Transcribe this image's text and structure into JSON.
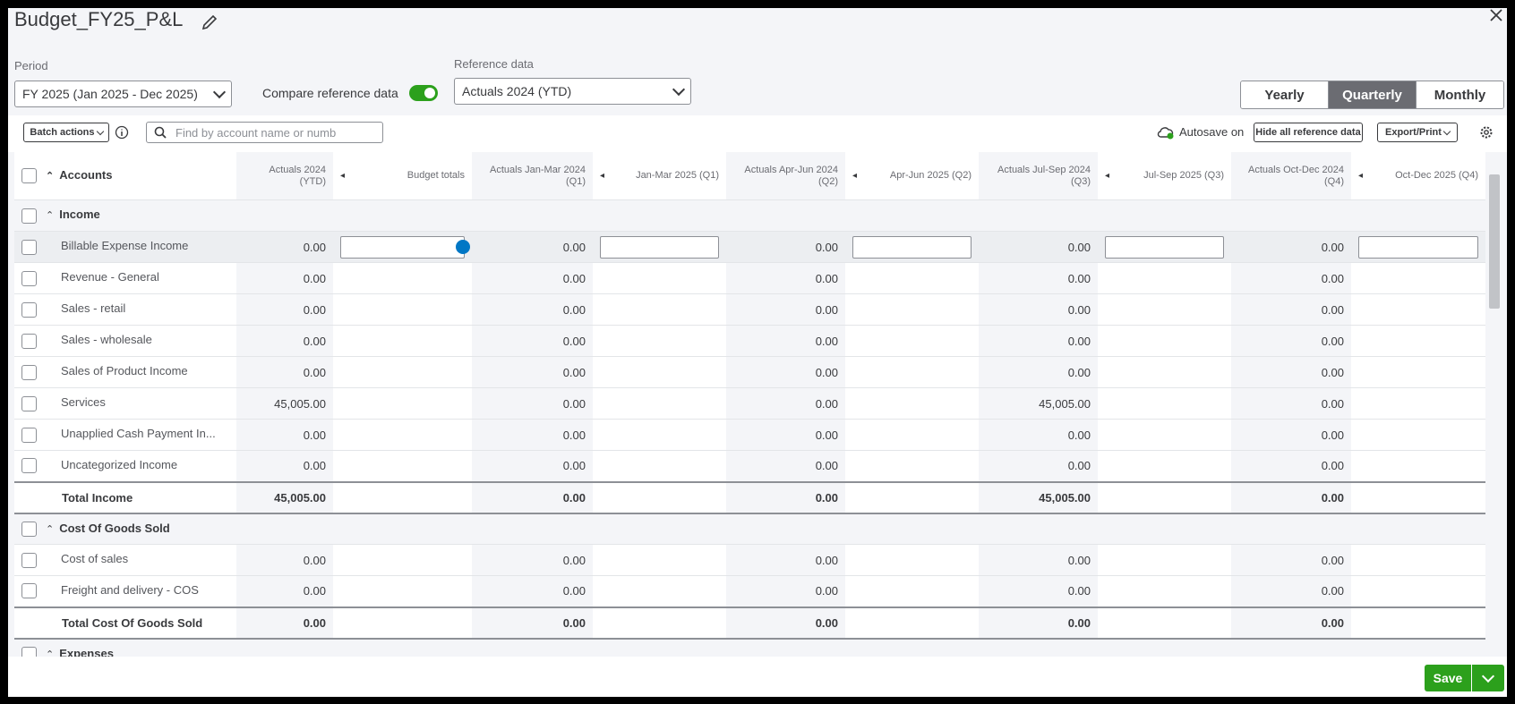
{
  "header": {
    "title": "Budget_FY25_P&L"
  },
  "controls": {
    "period": {
      "label": "Period",
      "value": "FY 2025 (Jan 2025 - Dec 2025)"
    },
    "compare": {
      "label": "Compare reference data",
      "on": true
    },
    "reference": {
      "label": "Reference data",
      "value": "Actuals 2024 (YTD)"
    },
    "views": [
      {
        "label": "Yearly",
        "selected": false
      },
      {
        "label": "Quarterly",
        "selected": true
      },
      {
        "label": "Monthly",
        "selected": false
      }
    ]
  },
  "toolbar": {
    "batch_actions": "Batch actions",
    "search_placeholder": "Find by account name or numb",
    "autosave": "Autosave on",
    "hide_reference": "Hide all reference data",
    "export": "Export/Print"
  },
  "table": {
    "columns": [
      "Accounts",
      "Actuals 2024 (YTD)",
      "Budget totals",
      "Actuals Jan-Mar 2024 (Q1)",
      "Jan-Mar 2025 (Q1)",
      "Actuals Apr-Jun 2024 (Q2)",
      "Apr-Jun 2025 (Q2)",
      "Actuals Jul-Sep 2024 (Q3)",
      "Jul-Sep 2025 (Q3)",
      "Actuals Oct-Dec 2024 (Q4)",
      "Oct-Dec 2025 (Q4)"
    ],
    "rows": [
      {
        "type": "section",
        "label": "Income",
        "values": [
          null,
          null,
          null,
          null,
          null,
          null,
          null,
          null,
          null,
          null
        ]
      },
      {
        "type": "account",
        "label": "Billable Expense Income",
        "editing": true,
        "values": [
          "0.00",
          null,
          "0.00",
          null,
          "0.00",
          null,
          "0.00",
          null,
          "0.00",
          null
        ]
      },
      {
        "type": "account",
        "label": "Revenue - General",
        "values": [
          "0.00",
          null,
          "0.00",
          null,
          "0.00",
          null,
          "0.00",
          null,
          "0.00",
          null
        ]
      },
      {
        "type": "account",
        "label": "Sales - retail",
        "values": [
          "0.00",
          null,
          "0.00",
          null,
          "0.00",
          null,
          "0.00",
          null,
          "0.00",
          null
        ]
      },
      {
        "type": "account",
        "label": "Sales - wholesale",
        "values": [
          "0.00",
          null,
          "0.00",
          null,
          "0.00",
          null,
          "0.00",
          null,
          "0.00",
          null
        ]
      },
      {
        "type": "account",
        "label": "Sales of Product Income",
        "values": [
          "0.00",
          null,
          "0.00",
          null,
          "0.00",
          null,
          "0.00",
          null,
          "0.00",
          null
        ]
      },
      {
        "type": "account",
        "label": "Services",
        "values": [
          "45,005.00",
          null,
          "0.00",
          null,
          "0.00",
          null,
          "45,005.00",
          null,
          "0.00",
          null
        ]
      },
      {
        "type": "account",
        "label": "Unapplied Cash Payment In...",
        "values": [
          "0.00",
          null,
          "0.00",
          null,
          "0.00",
          null,
          "0.00",
          null,
          "0.00",
          null
        ]
      },
      {
        "type": "account",
        "label": "Uncategorized Income",
        "values": [
          "0.00",
          null,
          "0.00",
          null,
          "0.00",
          null,
          "0.00",
          null,
          "0.00",
          null
        ]
      },
      {
        "type": "total",
        "label": "Total Income",
        "values": [
          "45,005.00",
          null,
          "0.00",
          null,
          "0.00",
          null,
          "45,005.00",
          null,
          "0.00",
          null
        ]
      },
      {
        "type": "section",
        "label": "Cost Of Goods Sold",
        "values": [
          null,
          null,
          null,
          null,
          null,
          null,
          null,
          null,
          null,
          null
        ]
      },
      {
        "type": "account",
        "label": "Cost of sales",
        "values": [
          "0.00",
          null,
          "0.00",
          null,
          "0.00",
          null,
          "0.00",
          null,
          "0.00",
          null
        ]
      },
      {
        "type": "account",
        "label": "Freight and delivery - COS",
        "values": [
          "0.00",
          null,
          "0.00",
          null,
          "0.00",
          null,
          "0.00",
          null,
          "0.00",
          null
        ]
      },
      {
        "type": "total",
        "label": "Total Cost Of Goods Sold",
        "values": [
          "0.00",
          null,
          "0.00",
          null,
          "0.00",
          null,
          "0.00",
          null,
          "0.00",
          null
        ]
      },
      {
        "type": "section",
        "label": "Expenses",
        "values": [
          null,
          null,
          null,
          null,
          null,
          null,
          null,
          null,
          null,
          null
        ]
      }
    ]
  },
  "footer": {
    "save": "Save"
  }
}
